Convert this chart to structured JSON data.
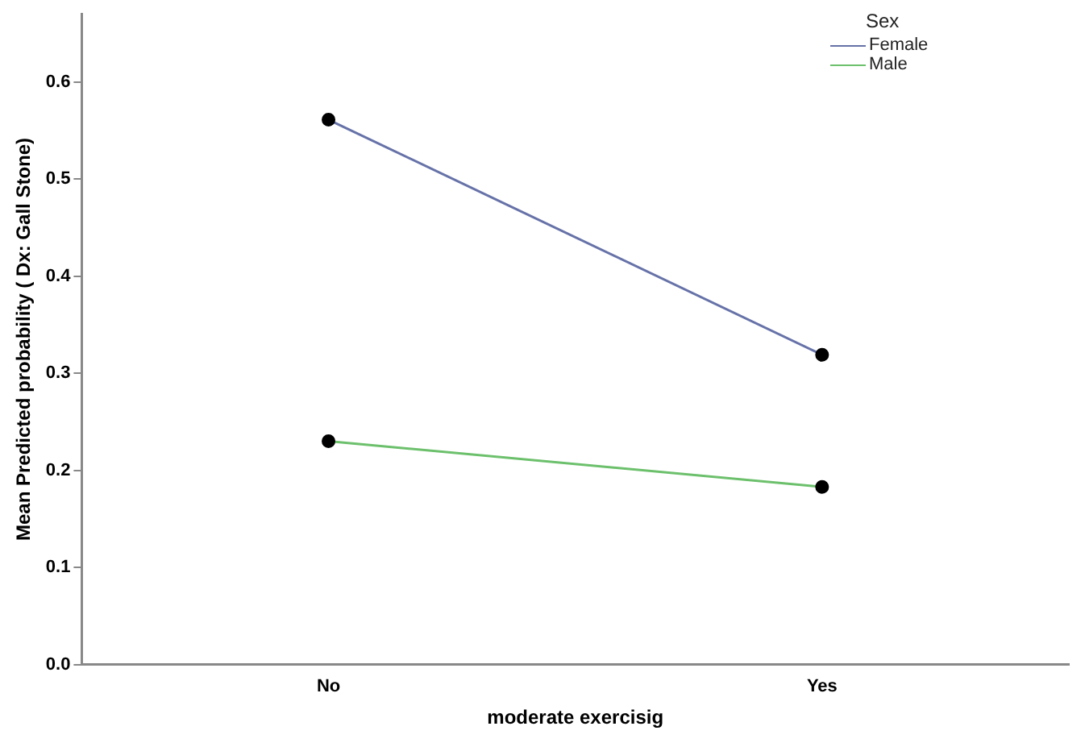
{
  "chart_data": {
    "type": "line",
    "xlabel": "moderate exercisig",
    "ylabel": "Mean Predicted probability ( Dx: Gall Stone)",
    "legend_title": "Sex",
    "legend": "top right",
    "marker": "circle",
    "grid": false,
    "categories": [
      "No",
      "Yes"
    ],
    "ylim": [
      0,
      0.67
    ],
    "yticks": [
      {
        "value": 0,
        "label": "0.0"
      },
      0.1,
      0.2,
      0.3,
      0.4,
      0.5,
      0.6
    ],
    "series": [
      {
        "name": "Female",
        "color": "#6672a8",
        "values": [
          0.561,
          0.319
        ]
      },
      {
        "name": "Male",
        "color": "#6cc06c",
        "values": [
          0.23,
          0.183
        ]
      }
    ]
  }
}
